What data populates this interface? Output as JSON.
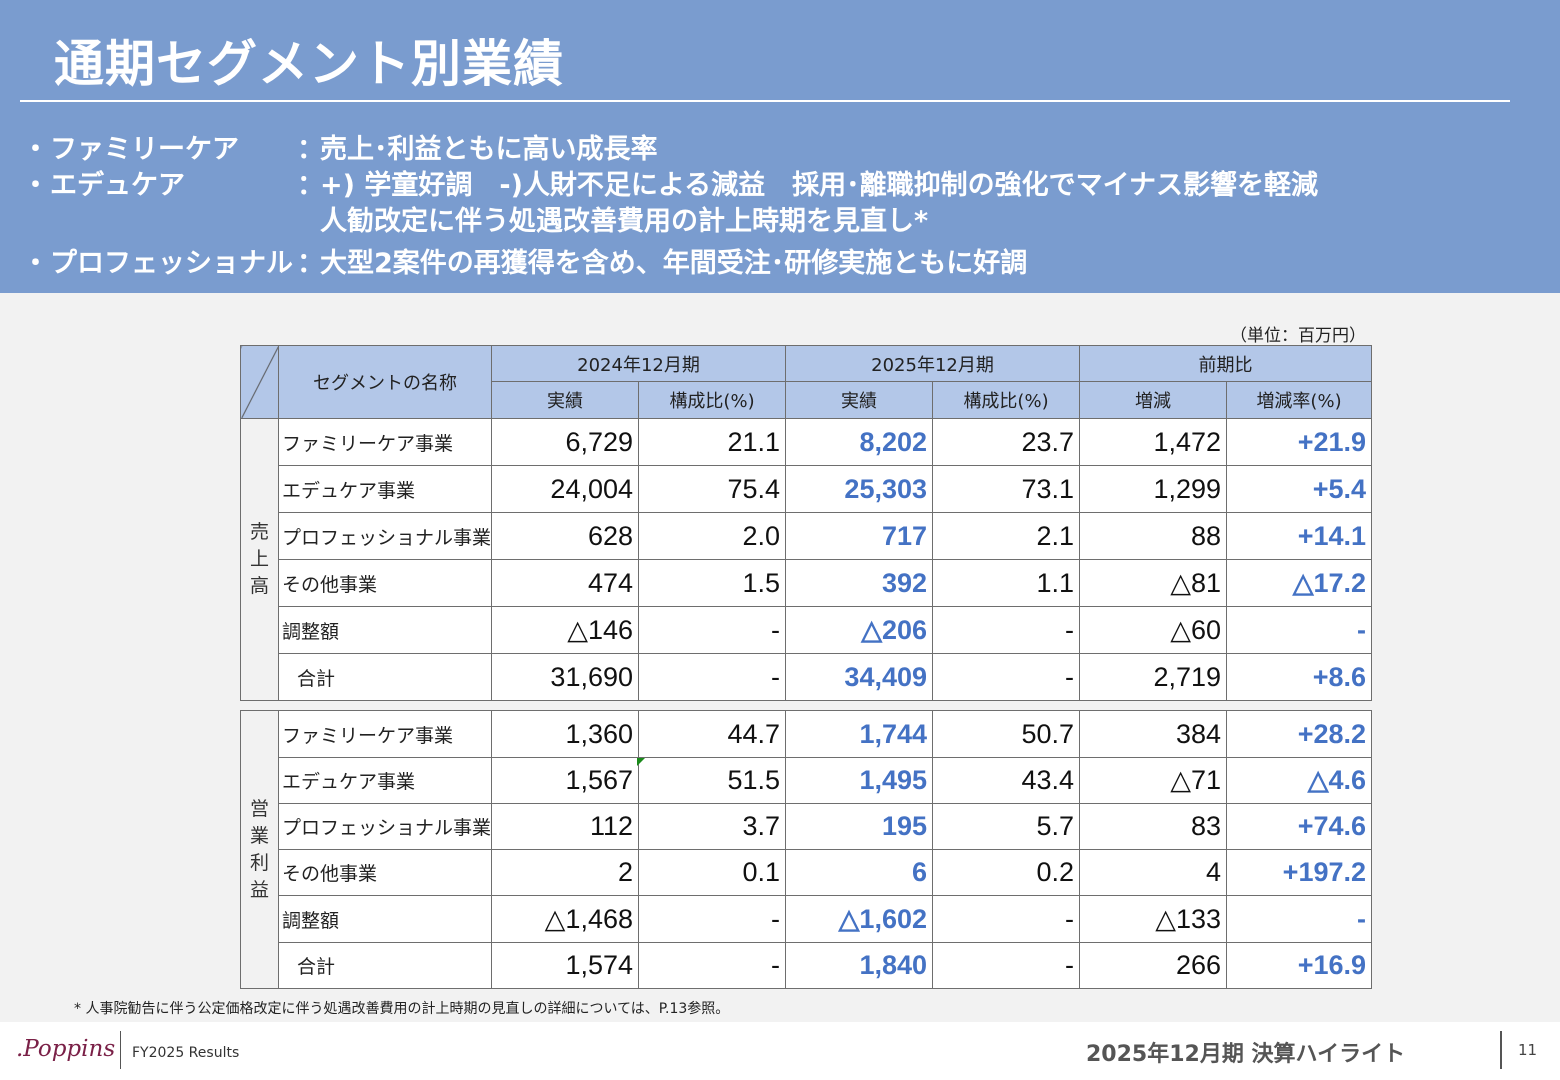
{
  "title": "通期セグメント別業績",
  "bullets": [
    {
      "dot": "・",
      "name": "ファミリーケア",
      "colon": "：",
      "lines": [
        "売上･利益ともに高い成長率"
      ]
    },
    {
      "dot": "・",
      "name": "エデュケア",
      "colon": "：",
      "lines": [
        "+) 学童好調　-)人財不足による減益　採用･離職抑制の強化でマイナス影響を軽減",
        "人勧改定に伴う処遇改善費用の計上時期を見直し*"
      ]
    },
    {
      "dot": "・",
      "name": "プロフェッショナル",
      "colon": "：",
      "lines": [
        "大型2案件の再獲得を含め、年間受注･研修実施ともに好調"
      ]
    }
  ],
  "unit": "（単位：百万円）",
  "table": {
    "header": {
      "segment_name": "セグメントの名称",
      "period_2024": "2024年12月期",
      "period_2025": "2025年12月期",
      "yoy": "前期比",
      "actual": "実績",
      "ratio": "構成比(%)",
      "change": "増減",
      "change_rate": "増減率(%)"
    },
    "sections": [
      {
        "label_chars": [
          "売",
          "上",
          "高"
        ],
        "rows": [
          {
            "name": "ファミリーケア事業",
            "a2024": "6,729",
            "r2024": "21.1",
            "a2025": "8,202",
            "r2025": "23.7",
            "change": "1,472",
            "rate": "+21.9"
          },
          {
            "name": "エデュケア事業",
            "a2024": "24,004",
            "r2024": "75.4",
            "a2025": "25,303",
            "r2025": "73.1",
            "change": "1,299",
            "rate": "+5.4"
          },
          {
            "name": "プロフェッショナル事業",
            "a2024": "628",
            "r2024": "2.0",
            "a2025": "717",
            "r2025": "2.1",
            "change": "88",
            "rate": "+14.1"
          },
          {
            "name": "その他事業",
            "a2024": "474",
            "r2024": "1.5",
            "a2025": "392",
            "r2025": "1.1",
            "change": "△81",
            "rate": "△17.2"
          },
          {
            "name": "調整額",
            "a2024": "△146",
            "r2024": "-",
            "a2025": "△206",
            "r2025": "-",
            "change": "△60",
            "rate": "-"
          },
          {
            "name": "合計",
            "a2024": "31,690",
            "r2024": "-",
            "a2025": "34,409",
            "r2025": "-",
            "change": "2,719",
            "rate": "+8.6"
          }
        ]
      },
      {
        "label_chars": [
          "営",
          "業",
          "利",
          "益"
        ],
        "rows": [
          {
            "name": "ファミリーケア事業",
            "a2024": "1,360",
            "r2024": "44.7",
            "a2025": "1,744",
            "r2025": "50.7",
            "change": "384",
            "rate": "+28.2"
          },
          {
            "name": "エデュケア事業",
            "a2024": "1,567",
            "r2024": "51.5",
            "a2025": "1,495",
            "r2025": "43.4",
            "change": "△71",
            "rate": "△4.6"
          },
          {
            "name": "プロフェッショナル事業",
            "a2024": "112",
            "r2024": "3.7",
            "a2025": "195",
            "r2025": "5.7",
            "change": "83",
            "rate": "+74.6"
          },
          {
            "name": "その他事業",
            "a2024": "2",
            "r2024": "0.1",
            "a2025": "6",
            "r2025": "0.2",
            "change": "4",
            "rate": "+197.2"
          },
          {
            "name": "調整額",
            "a2024": "△1,468",
            "r2024": "-",
            "a2025": "△1,602",
            "r2025": "-",
            "change": "△133",
            "rate": "-"
          },
          {
            "name": "合計",
            "a2024": "1,574",
            "r2024": "-",
            "a2025": "1,840",
            "r2025": "-",
            "change": "266",
            "rate": "+16.9"
          }
        ]
      }
    ]
  },
  "footnote": "* 人事院勧告に伴う公定価格改定に伴う処遇改善費用の計上時期の見直しの詳細については、P.13参照。",
  "footer": {
    "logo": ".Poppins",
    "results": "FY2025 Results",
    "highlight": "2025年12月期 決算ハイライト",
    "page": "11"
  },
  "colors": {
    "header_band": "#7a9ccf",
    "table_header": "#b3c7e8",
    "accent_blue": "#4472c4",
    "logo": "#7a2047"
  }
}
